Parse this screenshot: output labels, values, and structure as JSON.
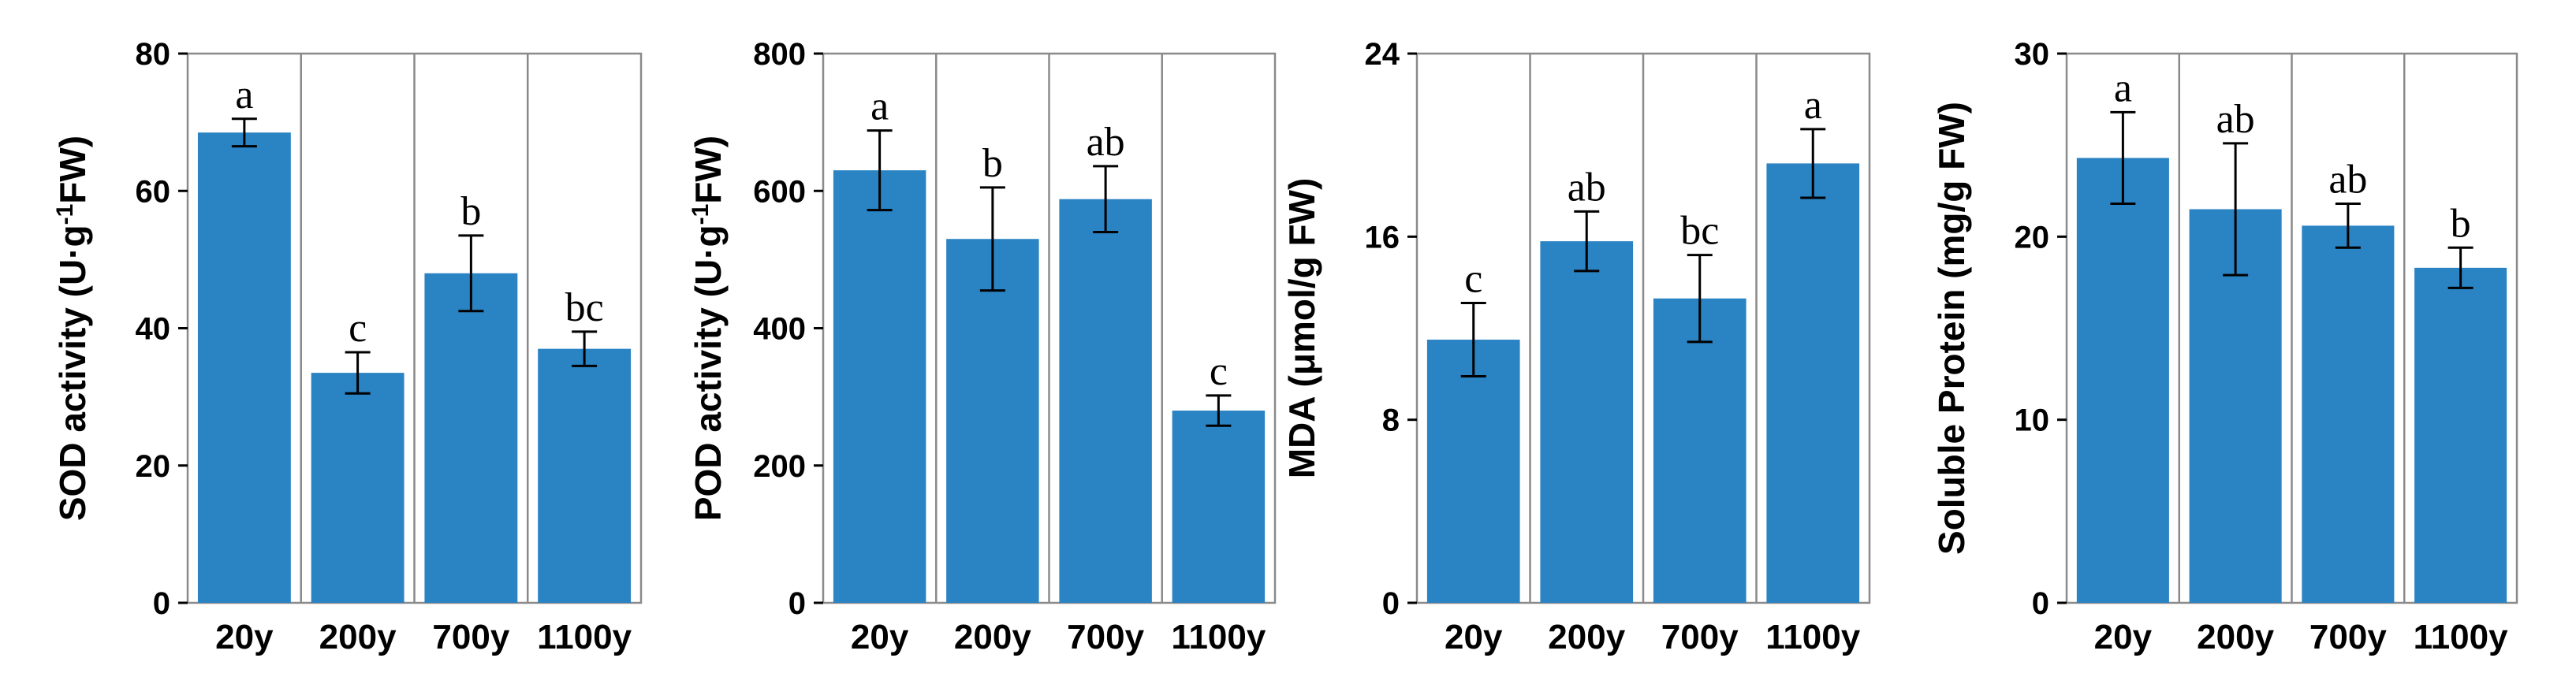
{
  "chart_data": [
    {
      "type": "bar",
      "title": "",
      "xlabel": "",
      "ylabel": "SOD  activity  (U·g⁻¹FW)",
      "ylabel_parts": [
        "SOD  activity  (U·g",
        "-1",
        "FW)"
      ],
      "ylim": [
        0,
        80
      ],
      "yticks": [
        0,
        20,
        40,
        60,
        80
      ],
      "grid": "vertical separators",
      "categories": [
        "20y",
        "200y",
        "700y",
        "1100y"
      ],
      "values": [
        68.5,
        33.5,
        48,
        37
      ],
      "errors": [
        2,
        3,
        5.5,
        2.5
      ],
      "labels": [
        "a",
        "c",
        "b",
        "bc"
      ],
      "color": "#2a83c3"
    },
    {
      "type": "bar",
      "title": "",
      "xlabel": "",
      "ylabel": "POD  activity  (U·g⁻¹FW)",
      "ylabel_parts": [
        "POD  activity  (U·g",
        "-1",
        "FW)"
      ],
      "ylim": [
        0,
        800
      ],
      "yticks": [
        0,
        200,
        400,
        600,
        800
      ],
      "grid": "vertical separators",
      "categories": [
        "20y",
        "200y",
        "700y",
        "1100y"
      ],
      "values": [
        630,
        530,
        588,
        280
      ],
      "errors": [
        58,
        75,
        48,
        22
      ],
      "labels": [
        "a",
        "b",
        "ab",
        "c"
      ],
      "color": "#2a83c3"
    },
    {
      "type": "bar",
      "title": "",
      "xlabel": "",
      "ylabel": "MDA (μmol/g FW)",
      "ylim": [
        0,
        24
      ],
      "yticks": [
        0,
        8,
        16,
        24
      ],
      "grid": "vertical separators",
      "categories": [
        "20y",
        "200y",
        "700y",
        "1100y"
      ],
      "values": [
        11.5,
        15.8,
        13.3,
        19.2
      ],
      "errors": [
        1.6,
        1.3,
        1.9,
        1.5
      ],
      "labels": [
        "c",
        "ab",
        "bc",
        "a"
      ],
      "color": "#2a83c3"
    },
    {
      "type": "bar",
      "title": "",
      "xlabel": "",
      "ylabel": "Soluble Protein (mg/g FW)",
      "ylim": [
        0,
        30
      ],
      "yticks": [
        0,
        10,
        20,
        30
      ],
      "grid": "vertical separators",
      "categories": [
        "20y",
        "200y",
        "700y",
        "1100y"
      ],
      "values": [
        24.3,
        21.5,
        20.6,
        18.3
      ],
      "errors": [
        2.5,
        3.6,
        1.2,
        1.1
      ],
      "labels": [
        "a",
        "ab",
        "ab",
        "b"
      ],
      "color": "#2a83c3"
    }
  ]
}
